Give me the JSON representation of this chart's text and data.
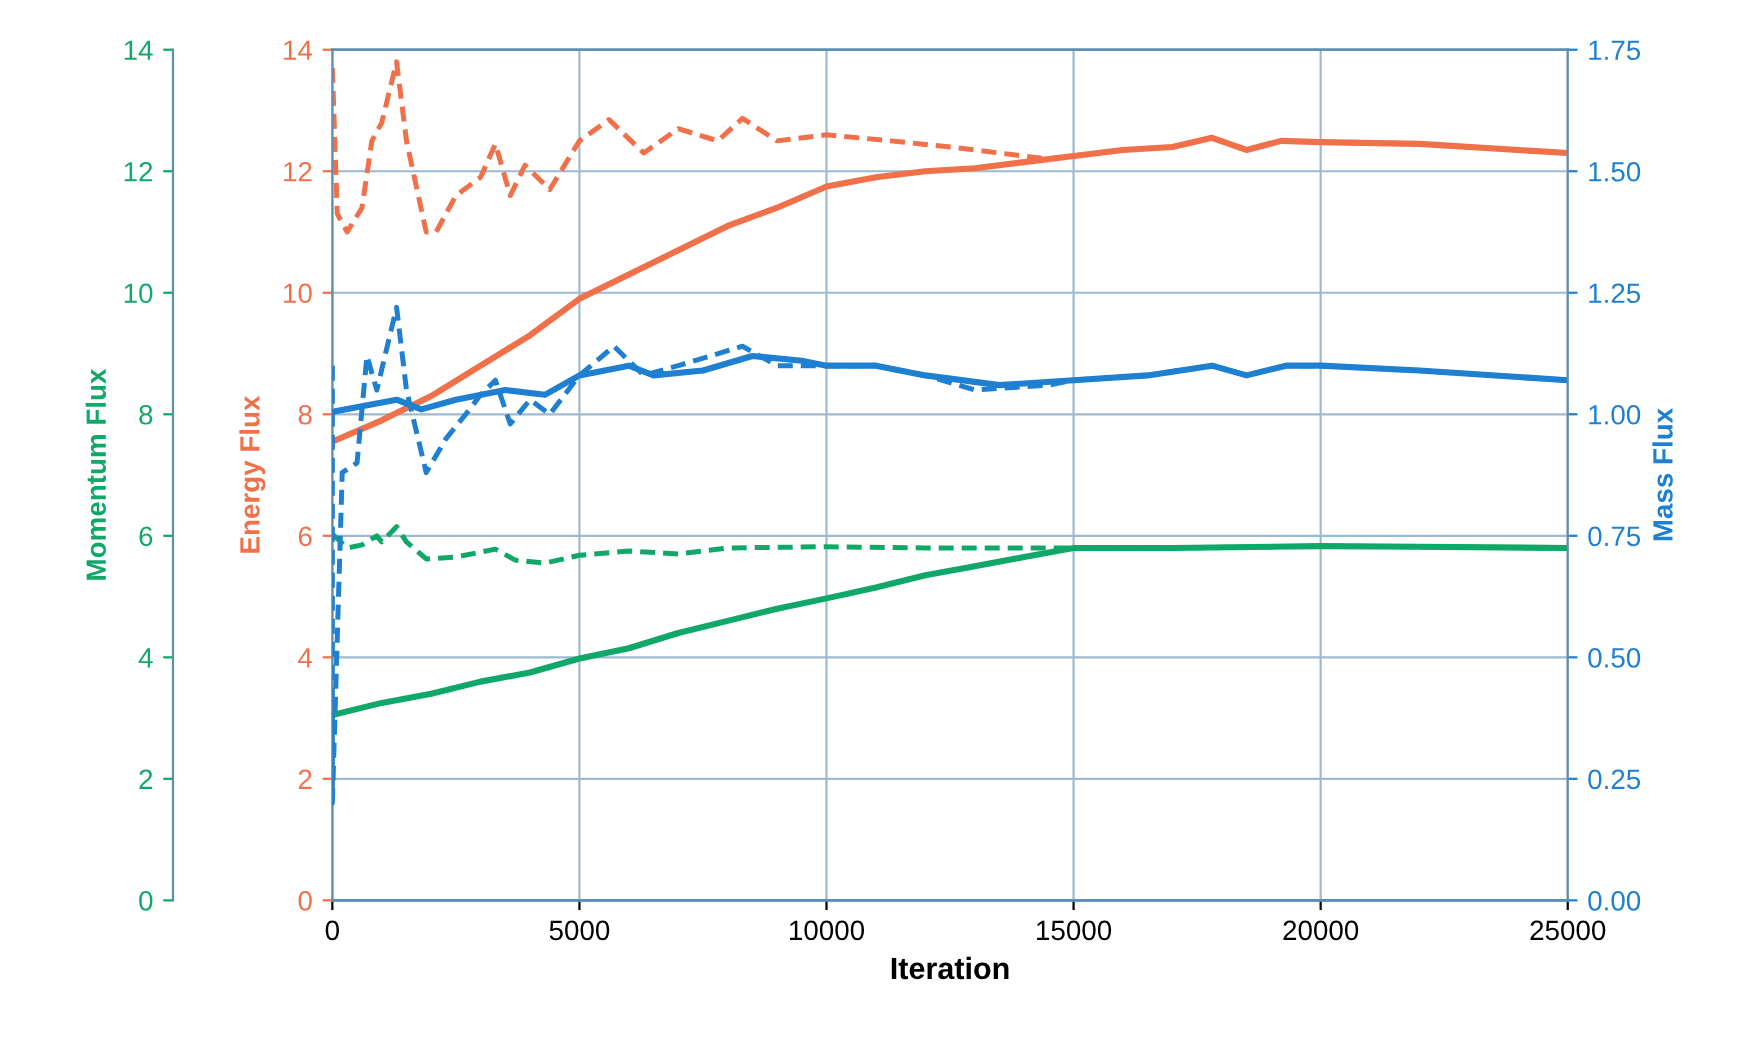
{
  "chart_data": {
    "type": "line",
    "xlabel": "Iteration",
    "ylabel": "Momentum Flux",
    "y2label": "Mass Flux",
    "y3label": "Energy Flux",
    "xlim": [
      0,
      25000
    ],
    "xticks": [
      0,
      5000,
      10000,
      15000,
      20000,
      25000
    ],
    "ylim": [
      0,
      14
    ],
    "yticks": [
      0,
      2,
      4,
      6,
      8,
      10,
      12,
      14
    ],
    "y3lim": [
      0,
      14
    ],
    "y3ticks": [
      0,
      2,
      4,
      6,
      8,
      10,
      12,
      14
    ],
    "y2lim": [
      0,
      1.75
    ],
    "y2ticks": [
      {
        "value": 0,
        "label": "0.00"
      },
      {
        "value": 0.25,
        "label": "0.25"
      },
      {
        "value": 0.5,
        "label": "0.50"
      },
      {
        "value": 0.75,
        "label": "0.75"
      },
      {
        "value": 1.0,
        "label": "1.00"
      },
      {
        "value": 1.25,
        "label": "1.25"
      },
      {
        "value": 1.5,
        "label": "1.50"
      },
      {
        "value": 1.75,
        "label": "1.75"
      }
    ],
    "grid": true,
    "marker": "none",
    "series": [
      {
        "axis": "y",
        "color": "#10a868",
        "line_style": "solid",
        "x": [
          0,
          1000,
          2000,
          3000,
          4000,
          5000,
          6000,
          7000,
          8000,
          9000,
          10000,
          11000,
          12000,
          13000,
          14000,
          15000,
          17000,
          20000,
          22000,
          25000
        ],
        "values": [
          3.05,
          3.25,
          3.4,
          3.6,
          3.75,
          3.98,
          4.15,
          4.4,
          4.6,
          4.8,
          4.97,
          5.15,
          5.35,
          5.5,
          5.65,
          5.8,
          5.8,
          5.83,
          5.82,
          5.8
        ]
      },
      {
        "axis": "y",
        "color": "#10a868",
        "line_style": "dashed",
        "x": [
          0,
          300,
          600,
          900,
          1000,
          1300,
          1500,
          1900,
          2500,
          3300,
          3700,
          4300,
          5000,
          6000,
          7000,
          8000,
          10000,
          12000,
          14000,
          15000,
          17000,
          20000,
          22000,
          25000
        ],
        "values": [
          6.03,
          5.8,
          5.85,
          6.0,
          5.9,
          6.15,
          5.9,
          5.62,
          5.65,
          5.78,
          5.6,
          5.55,
          5.68,
          5.75,
          5.7,
          5.8,
          5.82,
          5.8,
          5.8,
          5.8,
          5.8,
          5.83,
          5.82,
          5.8
        ]
      },
      {
        "axis": "y3",
        "color": "#f0704a",
        "line_style": "solid",
        "x": [
          0,
          1000,
          2000,
          3000,
          4000,
          5000,
          6000,
          7000,
          8000,
          9000,
          10000,
          11000,
          12000,
          13000,
          14000,
          15000,
          16000,
          17000,
          17800,
          18500,
          19200,
          20000,
          22000,
          24000,
          25000
        ],
        "values": [
          7.55,
          7.9,
          8.3,
          8.8,
          9.3,
          9.9,
          10.3,
          10.7,
          11.1,
          11.4,
          11.75,
          11.9,
          12.0,
          12.05,
          12.15,
          12.25,
          12.35,
          12.4,
          12.55,
          12.35,
          12.5,
          12.48,
          12.45,
          12.35,
          12.3
        ]
      },
      {
        "axis": "y3",
        "color": "#f0704a",
        "line_style": "dashed",
        "x": [
          0,
          100,
          300,
          600,
          800,
          1000,
          1300,
          1500,
          1900,
          2100,
          2500,
          3000,
          3300,
          3600,
          3900,
          4400,
          5000,
          5600,
          6300,
          7000,
          7800,
          8300,
          9000,
          10000,
          11300,
          12500,
          13500,
          14500,
          15000,
          16000,
          17000,
          17800,
          18500,
          19200,
          20000,
          22000,
          24000,
          25000
        ],
        "values": [
          13.7,
          11.3,
          11.0,
          11.4,
          12.5,
          12.8,
          13.8,
          12.5,
          11.0,
          11.0,
          11.6,
          11.9,
          12.45,
          11.6,
          12.1,
          11.7,
          12.5,
          12.85,
          12.3,
          12.7,
          12.5,
          12.87,
          12.5,
          12.6,
          12.5,
          12.4,
          12.3,
          12.2,
          12.25,
          12.35,
          12.4,
          12.55,
          12.35,
          12.5,
          12.48,
          12.45,
          12.35,
          12.3
        ]
      },
      {
        "axis": "y2",
        "color": "#1f7fd0",
        "line_style": "solid",
        "x": [
          0,
          1300,
          1800,
          2500,
          3500,
          4300,
          5000,
          6000,
          6500,
          7500,
          8500,
          9500,
          10000,
          11000,
          12000,
          13500,
          15000,
          16500,
          17800,
          18500,
          19300,
          20000,
          22000,
          25000
        ],
        "values": [
          1.005,
          1.03,
          1.01,
          1.03,
          1.05,
          1.04,
          1.08,
          1.1,
          1.08,
          1.09,
          1.12,
          1.11,
          1.1,
          1.1,
          1.08,
          1.06,
          1.07,
          1.08,
          1.1,
          1.08,
          1.1,
          1.1,
          1.09,
          1.07
        ]
      },
      {
        "axis": "y2",
        "color": "#1f7fd0",
        "line_style": "dashed",
        "x": [
          0,
          0,
          200,
          500,
          700,
          900,
          1300,
          1500,
          1900,
          2300,
          2700,
          3000,
          3300,
          3600,
          4000,
          4400,
          5000,
          5700,
          6300,
          7000,
          8300,
          9000,
          10000,
          11000,
          12000,
          13000,
          14500,
          15000,
          16500,
          17800,
          18500,
          19300,
          20000,
          22000,
          25000
        ],
        "values": [
          1.1,
          0.2,
          0.88,
          0.9,
          1.12,
          1.05,
          1.22,
          1.05,
          0.88,
          0.95,
          1.0,
          1.04,
          1.07,
          0.98,
          1.03,
          1.0,
          1.08,
          1.14,
          1.08,
          1.1,
          1.14,
          1.1,
          1.1,
          1.1,
          1.08,
          1.05,
          1.06,
          1.07,
          1.08,
          1.1,
          1.08,
          1.1,
          1.1,
          1.09,
          1.07
        ]
      }
    ]
  }
}
